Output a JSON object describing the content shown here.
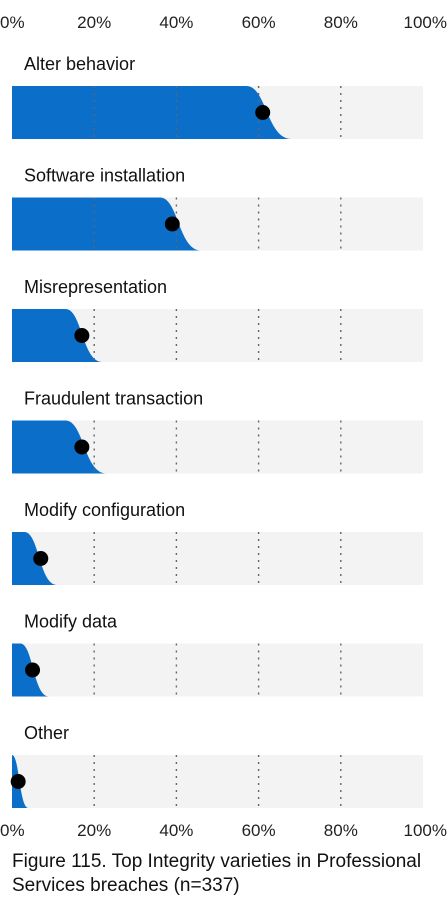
{
  "chart_data": {
    "type": "bar",
    "title": "Figure 115. Top Integrity varieties in Professional Services breaches (n=337)",
    "xlabel": "",
    "ylabel": "",
    "xlim": [
      0,
      100
    ],
    "x_ticks": [
      "0%",
      "20%",
      "40%",
      "60%",
      "80%",
      "100%"
    ],
    "grid": true,
    "legend": "none",
    "colors": {
      "bar": "#0b6fc9",
      "track": "#f3f3f3",
      "point": "#000000",
      "grid": "#666666"
    },
    "categories": [
      "Alter behavior",
      "Software installation",
      "Misrepresentation",
      "Fraudulent transaction",
      "Modify configuration",
      "Modify data",
      "Other"
    ],
    "values": [
      61,
      39,
      17,
      17,
      7,
      5,
      1.5
    ],
    "interval_low": [
      57,
      36,
      13,
      13,
      3,
      2,
      0
    ],
    "interval_high": [
      68,
      46,
      22,
      23,
      11,
      9,
      4
    ]
  }
}
